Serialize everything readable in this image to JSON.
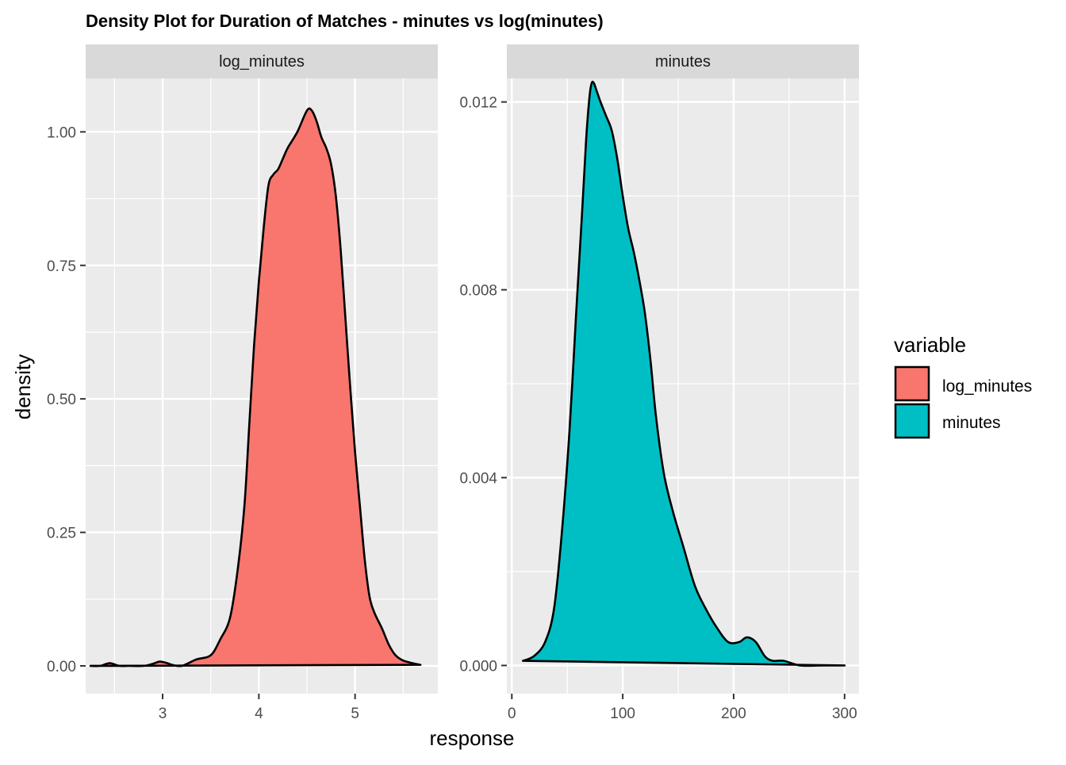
{
  "chart_data": {
    "type": "area",
    "title": "Density Plot for Duration of Matches - minutes vs log(minutes)",
    "xlabel": "response",
    "ylabel": "density",
    "grid": true,
    "legend": {
      "title": "variable",
      "placement": "right",
      "entries": [
        {
          "label": "log_minutes",
          "color": "#F8766D"
        },
        {
          "label": "minutes",
          "color": "#00BFC4"
        }
      ]
    },
    "panels": [
      {
        "strip": "log_minutes",
        "fill": "#F8766D",
        "xlim": [
          2.2,
          5.86
        ],
        "ylim": [
          -0.052,
          1.1
        ],
        "x_ticks": [
          3,
          4,
          5
        ],
        "x_tick_labels": [
          "3",
          "4",
          "5"
        ],
        "y_ticks": [
          0,
          0.25,
          0.5,
          0.75,
          1.0
        ],
        "y_tick_labels": [
          "0.00",
          "0.25",
          "0.50",
          "0.75",
          "1.00"
        ],
        "x": [
          2.25,
          2.35,
          2.45,
          2.55,
          2.65,
          2.8,
          2.9,
          2.97,
          3.05,
          3.1,
          3.2,
          3.35,
          3.5,
          3.6,
          3.7,
          3.78,
          3.85,
          3.9,
          3.95,
          4.0,
          4.05,
          4.1,
          4.15,
          4.2,
          4.25,
          4.3,
          4.4,
          4.5,
          4.55,
          4.6,
          4.65,
          4.7,
          4.75,
          4.8,
          4.85,
          4.9,
          4.95,
          5.0,
          5.05,
          5.1,
          5.15,
          5.2,
          5.28,
          5.35,
          5.42,
          5.5,
          5.6,
          5.68
        ],
        "y": [
          0.0,
          0.0,
          0.005,
          0.0,
          0.0,
          0.0,
          0.004,
          0.008,
          0.005,
          0.002,
          0.0,
          0.012,
          0.02,
          0.05,
          0.09,
          0.18,
          0.3,
          0.45,
          0.6,
          0.72,
          0.82,
          0.9,
          0.92,
          0.93,
          0.95,
          0.97,
          1.0,
          1.04,
          1.04,
          1.02,
          0.99,
          0.97,
          0.94,
          0.88,
          0.78,
          0.65,
          0.52,
          0.4,
          0.3,
          0.2,
          0.13,
          0.1,
          0.07,
          0.04,
          0.02,
          0.01,
          0.005,
          0.002
        ]
      },
      {
        "strip": "minutes",
        "fill": "#00BFC4",
        "xlim": [
          -4.5,
          313
        ],
        "ylim": [
          -0.0006,
          0.0125
        ],
        "x_ticks": [
          0,
          100,
          200,
          300
        ],
        "x_tick_labels": [
          "0",
          "100",
          "200",
          "300"
        ],
        "y_ticks": [
          0,
          0.004,
          0.008,
          0.012
        ],
        "y_tick_labels": [
          "0.000",
          "0.004",
          "0.008",
          "0.012"
        ],
        "x": [
          10,
          20,
          30,
          38,
          45,
          52,
          58,
          63,
          67,
          70,
          72,
          74,
          77,
          80,
          85,
          90,
          95,
          100,
          105,
          110,
          115,
          120,
          125,
          130,
          137,
          145,
          155,
          165,
          175,
          185,
          195,
          205,
          212,
          220,
          228,
          235,
          245,
          260,
          280,
          300
        ],
        "y": [
          0.0001,
          0.0002,
          0.0005,
          0.0012,
          0.0028,
          0.005,
          0.0075,
          0.0095,
          0.0112,
          0.0121,
          0.0124,
          0.0124,
          0.0122,
          0.012,
          0.0117,
          0.0114,
          0.0108,
          0.01,
          0.0093,
          0.0088,
          0.0082,
          0.0075,
          0.0065,
          0.0053,
          0.0041,
          0.0033,
          0.0025,
          0.0017,
          0.0012,
          0.0008,
          0.0005,
          0.0005,
          0.0006,
          0.0005,
          0.0002,
          0.0001,
          0.0001,
          0.0,
          0.0,
          0.0
        ]
      }
    ]
  }
}
